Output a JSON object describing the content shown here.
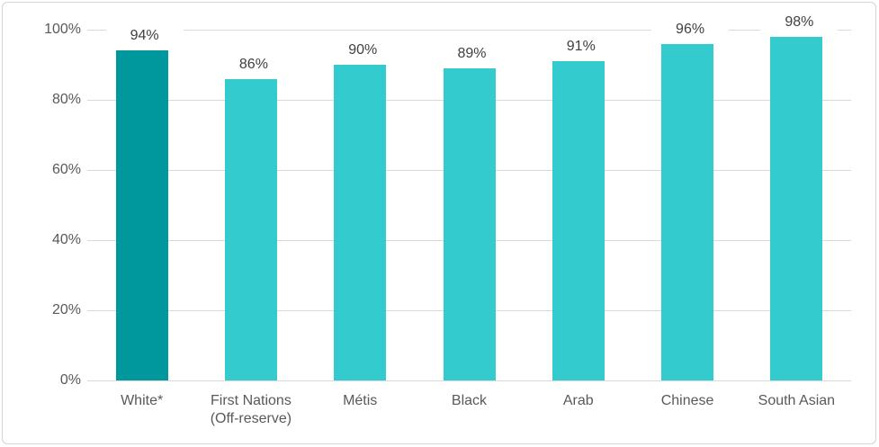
{
  "chart_data": {
    "type": "bar",
    "title": "",
    "xlabel": "",
    "ylabel": "",
    "categories": [
      "White*",
      "First Nations (Off-reserve)",
      "Métis",
      "Black",
      "Arab",
      "Chinese",
      "South Asian"
    ],
    "values": [
      94,
      86,
      90,
      89,
      91,
      96,
      98
    ],
    "data_labels": [
      "94%",
      "86%",
      "90%",
      "89%",
      "91%",
      "96%",
      "98%"
    ],
    "ylim": [
      0,
      100
    ],
    "ytick_labels": [
      "0%",
      "20%",
      "40%",
      "60%",
      "80%",
      "100%"
    ],
    "ytick_values": [
      0,
      20,
      40,
      60,
      80,
      100
    ],
    "grid": "horizontal",
    "legend": "none",
    "colors": {
      "highlight_bar": "#00989c",
      "default_bar": "#34cbce",
      "gridline": "#d9d9d9",
      "frame_border": "#d5d5d5",
      "axis_text": "#595959",
      "data_label_text": "#404040",
      "background": "#ffffff"
    },
    "highlight_index": 0
  }
}
